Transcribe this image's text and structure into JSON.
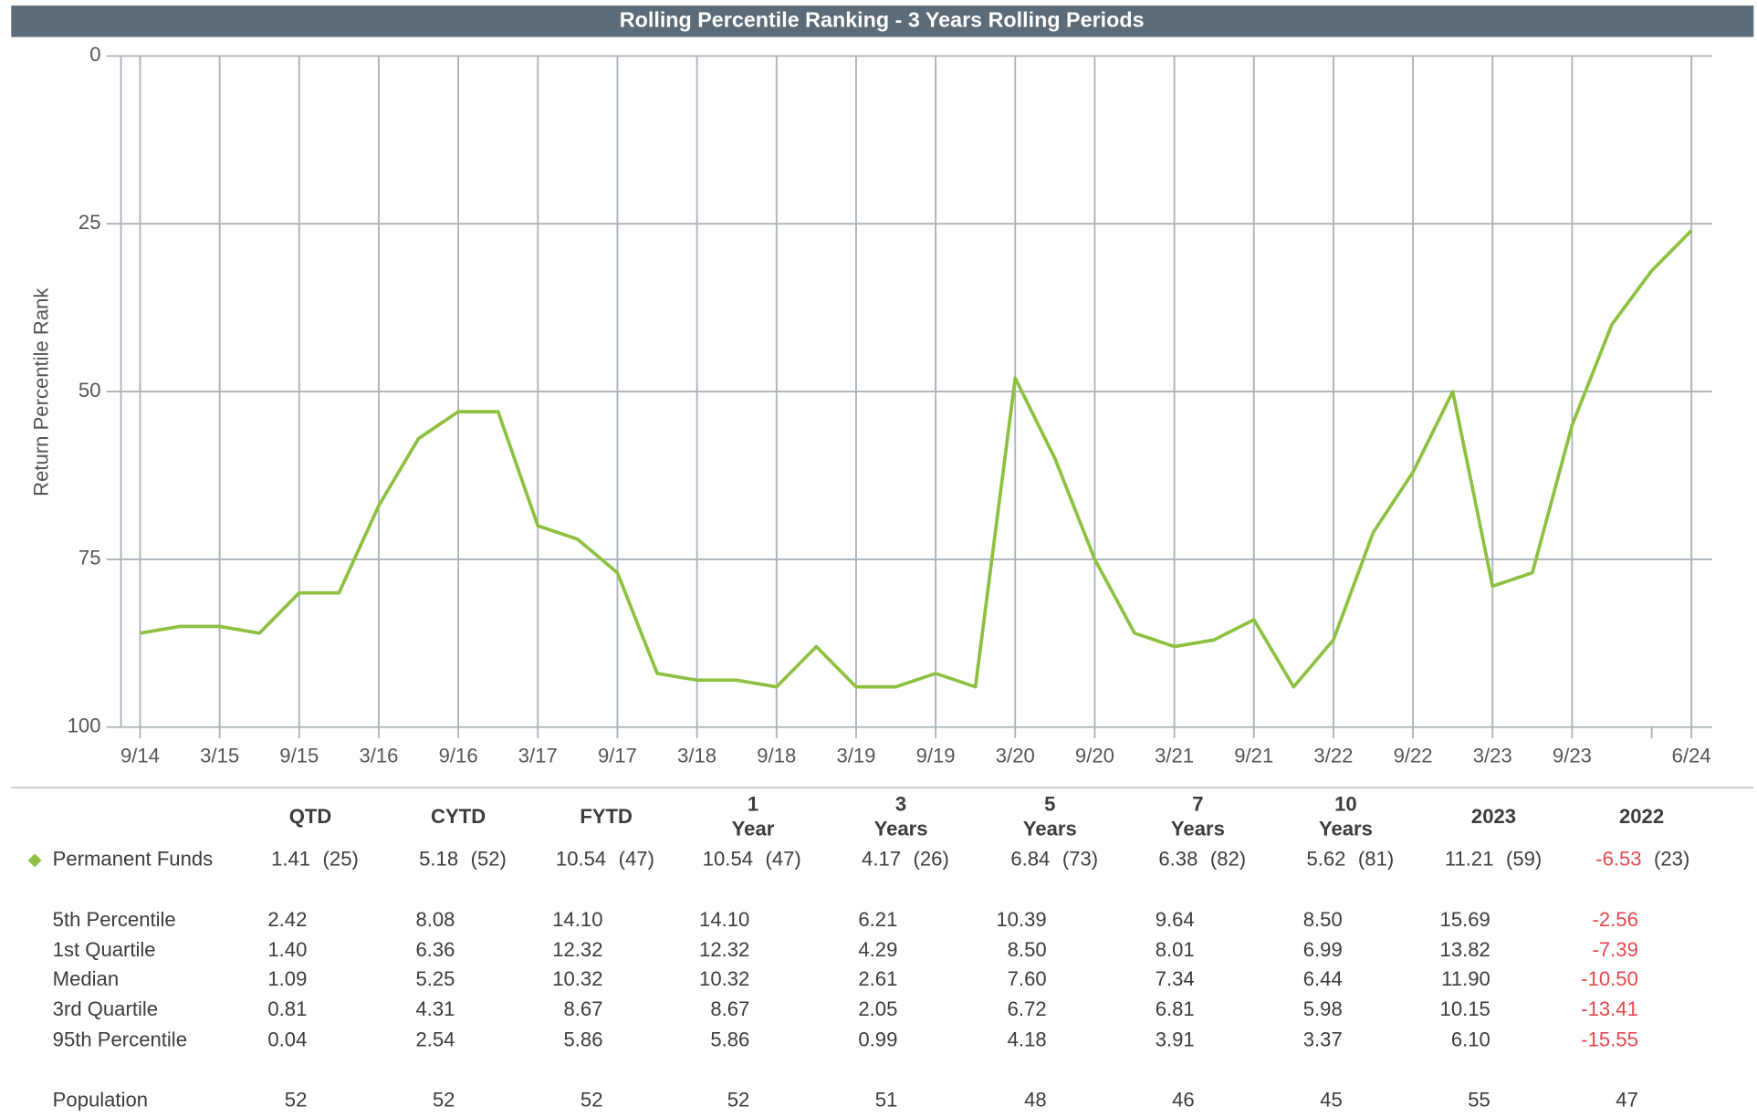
{
  "chart_data": {
    "type": "line",
    "title": "Rolling Percentile Ranking - 3 Years Rolling Periods",
    "y_label": "Return Percentile Rank",
    "categories": [
      "9/14",
      null,
      "3/15",
      null,
      "9/15",
      null,
      "3/16",
      null,
      "9/16",
      null,
      "3/17",
      null,
      "9/17",
      null,
      "3/18",
      null,
      "9/18",
      null,
      "3/19",
      null,
      "9/19",
      null,
      "3/20",
      null,
      "9/20",
      null,
      "3/21",
      null,
      "9/21",
      null,
      "3/22",
      null,
      "9/22",
      null,
      "3/23",
      null,
      "9/23",
      null,
      null,
      "6/24"
    ],
    "series": [
      {
        "color": "#8dc03f",
        "values": [
          86,
          85,
          85,
          86,
          80,
          80,
          67,
          57,
          53,
          53,
          70,
          72,
          77,
          92,
          93,
          93,
          94,
          88,
          94,
          94,
          92,
          94,
          48,
          60,
          75,
          86,
          88,
          87,
          84,
          94,
          87,
          71,
          62,
          50,
          79,
          77,
          55,
          40,
          32,
          26
        ]
      }
    ],
    "ylim": [
      100,
      0
    ],
    "yticks": [
      0,
      25,
      50,
      75,
      100
    ],
    "grid": true
  },
  "table": {
    "columns": [
      [
        "QTD"
      ],
      [
        "CYTD"
      ],
      [
        "FYTD"
      ],
      [
        "1",
        "Year"
      ],
      [
        "3",
        "Years"
      ],
      [
        "5",
        "Years"
      ],
      [
        "7",
        "Years"
      ],
      [
        "10",
        "Years"
      ],
      [
        "2023"
      ],
      [
        "2022"
      ]
    ],
    "fund": {
      "name": "Permanent Funds",
      "values": [
        "1.41",
        "5.18",
        "10.54",
        "10.54",
        "4.17",
        "6.84",
        "6.38",
        "5.62",
        "11.21",
        "-6.53"
      ],
      "ranks": [
        "(25)",
        "(52)",
        "(47)",
        "(47)",
        "(26)",
        "(73)",
        "(82)",
        "(81)",
        "(59)",
        "(23)"
      ]
    },
    "rows": [
      {
        "label": "5th Percentile",
        "values": [
          "2.42",
          "8.08",
          "14.10",
          "14.10",
          "6.21",
          "10.39",
          "9.64",
          "8.50",
          "15.69",
          "-2.56"
        ]
      },
      {
        "label": "1st Quartile",
        "values": [
          "1.40",
          "6.36",
          "12.32",
          "12.32",
          "4.29",
          "8.50",
          "8.01",
          "6.99",
          "13.82",
          "-7.39"
        ]
      },
      {
        "label": "Median",
        "values": [
          "1.09",
          "5.25",
          "10.32",
          "10.32",
          "2.61",
          "7.60",
          "7.34",
          "6.44",
          "11.90",
          "-10.50"
        ]
      },
      {
        "label": "3rd Quartile",
        "values": [
          "0.81",
          "4.31",
          "8.67",
          "8.67",
          "2.05",
          "6.72",
          "6.81",
          "5.98",
          "10.15",
          "-13.41"
        ]
      },
      {
        "label": "95th Percentile",
        "values": [
          "0.04",
          "2.54",
          "5.86",
          "5.86",
          "0.99",
          "4.18",
          "3.91",
          "3.37",
          "6.10",
          "-15.55"
        ]
      }
    ],
    "population": {
      "label": "Population",
      "values": [
        "52",
        "52",
        "52",
        "52",
        "51",
        "48",
        "46",
        "45",
        "55",
        "47"
      ]
    }
  }
}
